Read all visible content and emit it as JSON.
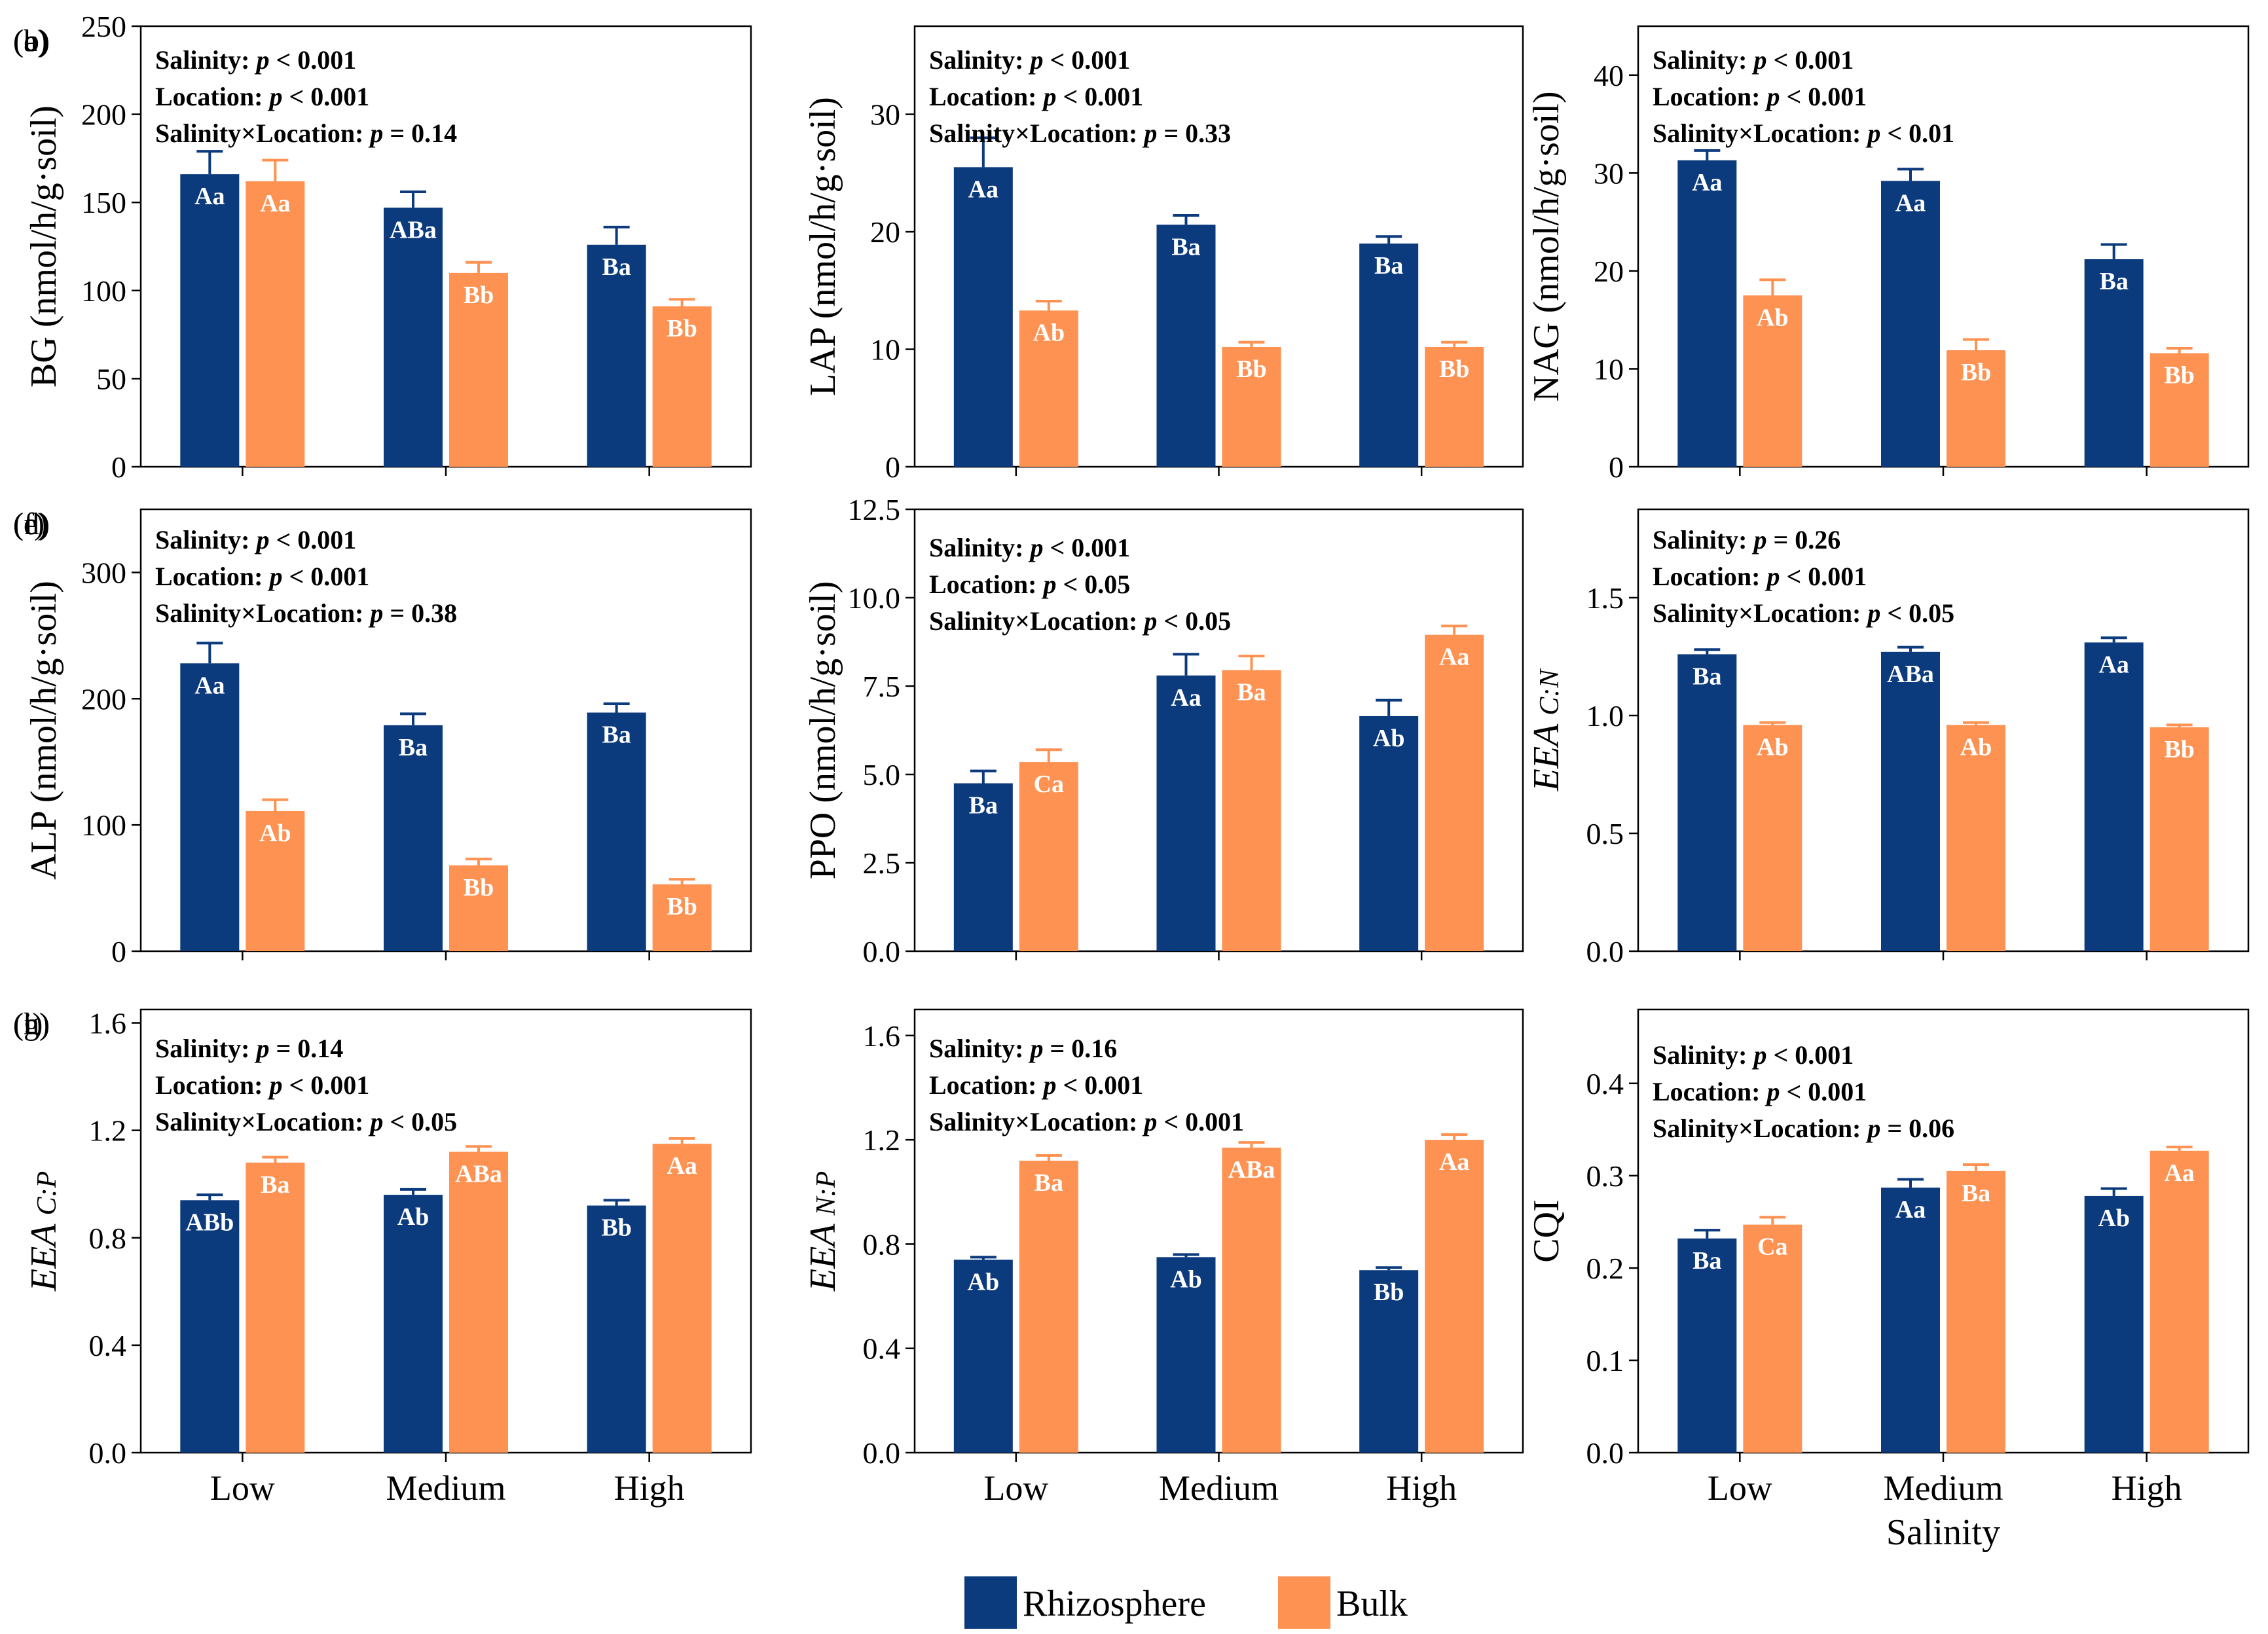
{
  "legend": [
    {
      "name": "Rhizosphere",
      "color": "#0b3a7d"
    },
    {
      "name": "Bulk",
      "color": "#fd9252"
    }
  ],
  "chart_data": [
    {
      "type": "bar",
      "panel": "(a)",
      "ylabel": "BG (nmol/h/g·soil)",
      "ylim": [
        0,
        250
      ],
      "yticks": [
        "0",
        "50",
        "100",
        "150",
        "200",
        "250"
      ],
      "categories": [
        "Low",
        "Medium",
        "High"
      ],
      "xlabel": "",
      "stats": [
        {
          "key": "Salinity: ",
          "p": "p",
          "rest": " < 0.001"
        },
        {
          "key": "Location: ",
          "p": "p",
          "rest": " < 0.001"
        },
        {
          "key": "Salinity×Location: ",
          "p": "p",
          "rest": " = 0.14"
        }
      ],
      "series": [
        {
          "name": "Rhizosphere",
          "values": [
            166,
            147,
            126
          ],
          "errors": [
            13,
            9,
            10
          ],
          "labels": [
            "Aa",
            "ABa",
            "Ba"
          ]
        },
        {
          "name": "Bulk",
          "values": [
            162,
            110,
            91
          ],
          "errors": [
            12,
            6,
            4
          ],
          "labels": [
            "Aa",
            "Bb",
            "Bb"
          ]
        }
      ]
    },
    {
      "type": "bar",
      "panel": "(b)",
      "ylabel": "LAP (nmol/h/g·soil)",
      "ylim": [
        0,
        37.5
      ],
      "yticks": [
        "0",
        "10",
        "20",
        "30"
      ],
      "categories": [
        "Low",
        "Medium",
        "High"
      ],
      "xlabel": "",
      "stats": [
        {
          "key": "Salinity: ",
          "p": "p",
          "rest": " < 0.001"
        },
        {
          "key": "Location: ",
          "p": "p",
          "rest": " < 0.001"
        },
        {
          "key": "Salinity×Location: ",
          "p": "p",
          "rest": " = 0.33"
        }
      ],
      "series": [
        {
          "name": "Rhizosphere",
          "values": [
            25.5,
            20.6,
            19.0
          ],
          "errors": [
            2.5,
            0.8,
            0.6
          ],
          "labels": [
            "Aa",
            "Ba",
            "Ba"
          ]
        },
        {
          "name": "Bulk",
          "values": [
            13.3,
            10.2,
            10.2
          ],
          "errors": [
            0.8,
            0.4,
            0.4
          ],
          "labels": [
            "Ab",
            "Bb",
            "Bb"
          ]
        }
      ]
    },
    {
      "type": "bar",
      "panel": "(c)",
      "ylabel": "NAG (nmol/h/g·soil)",
      "ylim": [
        0,
        45
      ],
      "yticks": [
        "0",
        "10",
        "20",
        "30",
        "40"
      ],
      "categories": [
        "Low",
        "Medium",
        "High"
      ],
      "xlabel": "",
      "stats": [
        {
          "key": "Salinity: ",
          "p": "p",
          "rest": " < 0.001"
        },
        {
          "key": "Location: ",
          "p": "p",
          "rest": " < 0.001"
        },
        {
          "key": "Salinity×Location: ",
          "p": "p",
          "rest": " < 0.01"
        }
      ],
      "series": [
        {
          "name": "Rhizosphere",
          "values": [
            31.3,
            29.2,
            21.2
          ],
          "errors": [
            1.0,
            1.2,
            1.5
          ],
          "labels": [
            "Aa",
            "Aa",
            "Ba"
          ]
        },
        {
          "name": "Bulk",
          "values": [
            17.5,
            11.9,
            11.6
          ],
          "errors": [
            1.6,
            1.1,
            0.5
          ],
          "labels": [
            "Ab",
            "Bb",
            "Bb"
          ]
        }
      ]
    },
    {
      "type": "bar",
      "panel": "(d)",
      "ylabel": "ALP (nmol/h/g·soil)",
      "ylim": [
        0,
        350
      ],
      "yticks": [
        "0",
        "100",
        "200",
        "300"
      ],
      "categories": [
        "Low",
        "Medium",
        "High"
      ],
      "xlabel": "",
      "stats": [
        {
          "key": "Salinity: ",
          "p": "p",
          "rest": " < 0.001"
        },
        {
          "key": "Location: ",
          "p": "p",
          "rest": " < 0.001"
        },
        {
          "key": "Salinity×Location: ",
          "p": "p",
          "rest": " = 0.38"
        }
      ],
      "series": [
        {
          "name": "Rhizosphere",
          "values": [
            228,
            179,
            189
          ],
          "errors": [
            16,
            9,
            7
          ],
          "labels": [
            "Aa",
            "Ba",
            "Ba"
          ]
        },
        {
          "name": "Bulk",
          "values": [
            111,
            68,
            53
          ],
          "errors": [
            9,
            5,
            4
          ],
          "labels": [
            "Ab",
            "Bb",
            "Bb"
          ]
        }
      ]
    },
    {
      "type": "bar",
      "panel": "(e)",
      "ylabel": "PPO (nmol/h/g·soil)",
      "ylim": [
        0,
        12.5
      ],
      "yticks": [
        "0.0",
        "2.5",
        "5.0",
        "7.5",
        "10.0",
        "12.5"
      ],
      "categories": [
        "Low",
        "Medium",
        "High"
      ],
      "xlabel": "",
      "stats": [
        {
          "key": "Salinity: ",
          "p": "p",
          "rest": " < 0.001"
        },
        {
          "key": "Location: ",
          "p": "p",
          "rest": " < 0.05"
        },
        {
          "key": "Salinity×Location: ",
          "p": "p",
          "rest": " < 0.05"
        }
      ],
      "series": [
        {
          "name": "Rhizosphere",
          "values": [
            4.75,
            7.8,
            6.65
          ],
          "errors": [
            0.35,
            0.6,
            0.45
          ],
          "labels": [
            "Ba",
            "Aa",
            "Ab"
          ]
        },
        {
          "name": "Bulk",
          "values": [
            5.35,
            7.95,
            8.95
          ],
          "errors": [
            0.35,
            0.4,
            0.25
          ],
          "labels": [
            "Ca",
            "Ba",
            "Aa"
          ]
        }
      ]
    },
    {
      "type": "bar",
      "panel": "(f)",
      "ylabel": "EEA C:N",
      "ylim": [
        0,
        1.875
      ],
      "yticks": [
        "0.0",
        "0.5",
        "1.0",
        "1.5"
      ],
      "categories": [
        "Low",
        "Medium",
        "High"
      ],
      "xlabel": "",
      "stats": [
        {
          "key": "Salinity: ",
          "p": "p",
          "rest": " = 0.26"
        },
        {
          "key": "Location: ",
          "p": "p",
          "rest": " < 0.001"
        },
        {
          "key": "Salinity×Location: ",
          "p": "p",
          "rest": " < 0.05"
        }
      ],
      "series": [
        {
          "name": "Rhizosphere",
          "values": [
            1.26,
            1.27,
            1.31
          ],
          "errors": [
            0.02,
            0.02,
            0.02
          ],
          "labels": [
            "Ba",
            "ABa",
            "Aa"
          ]
        },
        {
          "name": "Bulk",
          "values": [
            0.96,
            0.96,
            0.95
          ],
          "errors": [
            0.01,
            0.01,
            0.01
          ],
          "labels": [
            "Ab",
            "Ab",
            "Bb"
          ]
        }
      ]
    },
    {
      "type": "bar",
      "panel": "(g)",
      "ylabel": "EEA C:P",
      "ylim": [
        0,
        1.65
      ],
      "yticks": [
        "0.0",
        "0.4",
        "0.8",
        "1.2",
        "1.6"
      ],
      "categories": [
        "Low",
        "Medium",
        "High"
      ],
      "xlabel": "",
      "stats": [
        {
          "key": "Salinity: ",
          "p": "p",
          "rest": " = 0.14"
        },
        {
          "key": "Location: ",
          "p": "p",
          "rest": " < 0.001"
        },
        {
          "key": "Salinity×Location: ",
          "p": "p",
          "rest": " < 0.05"
        }
      ],
      "series": [
        {
          "name": "Rhizosphere",
          "values": [
            0.94,
            0.96,
            0.92
          ],
          "errors": [
            0.02,
            0.02,
            0.02
          ],
          "labels": [
            "ABb",
            "Ab",
            "Bb"
          ]
        },
        {
          "name": "Bulk",
          "values": [
            1.08,
            1.12,
            1.15
          ],
          "errors": [
            0.02,
            0.02,
            0.02
          ],
          "labels": [
            "Ba",
            "ABa",
            "Aa"
          ]
        }
      ]
    },
    {
      "type": "bar",
      "panel": "(h)",
      "ylabel": "EEA N:P",
      "ylim": [
        0,
        1.7
      ],
      "yticks": [
        "0.0",
        "0.4",
        "0.8",
        "1.2",
        "1.6"
      ],
      "categories": [
        "Low",
        "Medium",
        "High"
      ],
      "xlabel": "",
      "stats": [
        {
          "key": "Salinity: ",
          "p": "p",
          "rest": " = 0.16"
        },
        {
          "key": "Location: ",
          "p": "p",
          "rest": " < 0.001"
        },
        {
          "key": "Salinity×Location: ",
          "p": "p",
          "rest": " < 0.001"
        }
      ],
      "series": [
        {
          "name": "Rhizosphere",
          "values": [
            0.74,
            0.75,
            0.7
          ],
          "errors": [
            0.01,
            0.01,
            0.01
          ],
          "labels": [
            "Ab",
            "Ab",
            "Bb"
          ]
        },
        {
          "name": "Bulk",
          "values": [
            1.12,
            1.17,
            1.2
          ],
          "errors": [
            0.02,
            0.02,
            0.02
          ],
          "labels": [
            "Ba",
            "ABa",
            "Aa"
          ]
        }
      ]
    },
    {
      "type": "bar",
      "panel": "(i)",
      "ylabel": "CQI",
      "ylim": [
        0,
        0.48
      ],
      "yticks": [
        "0.0",
        "0.1",
        "0.2",
        "0.3",
        "0.4"
      ],
      "categories": [
        "Low",
        "Medium",
        "High"
      ],
      "xlabel": "Salinity",
      "stats": [
        {
          "key": "Salinity: ",
          "p": "p",
          "rest": " < 0.001"
        },
        {
          "key": "Location: ",
          "p": "p",
          "rest": " < 0.001"
        },
        {
          "key": "Salinity×Location: ",
          "p": "p",
          "rest": " = 0.06"
        }
      ],
      "series": [
        {
          "name": "Rhizosphere",
          "values": [
            0.232,
            0.287,
            0.278
          ],
          "errors": [
            0.009,
            0.009,
            0.008
          ],
          "labels": [
            "Ba",
            "Aa",
            "Ab"
          ]
        },
        {
          "name": "Bulk",
          "values": [
            0.247,
            0.305,
            0.327
          ],
          "errors": [
            0.008,
            0.007,
            0.004
          ],
          "labels": [
            "Ca",
            "Ba",
            "Aa"
          ]
        }
      ]
    }
  ]
}
